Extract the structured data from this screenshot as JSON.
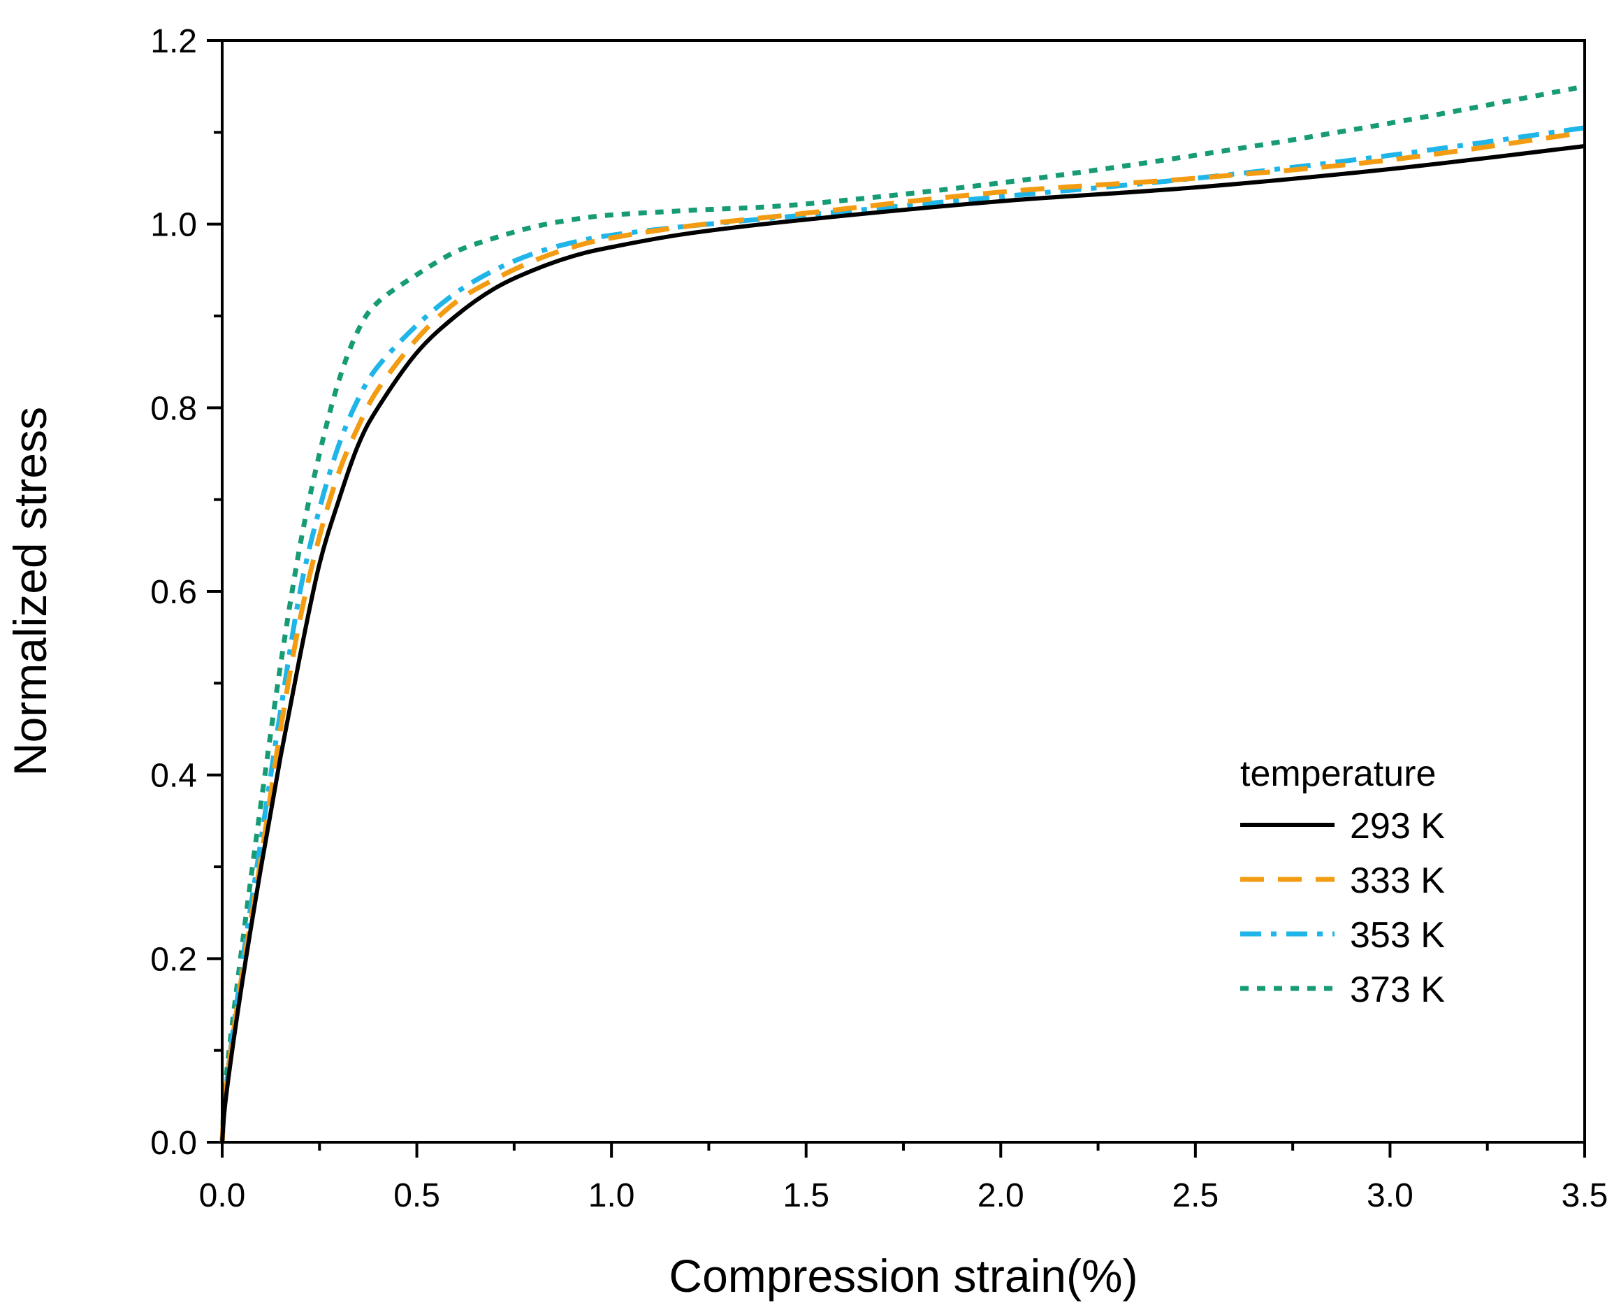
{
  "chart_data": {
    "type": "line",
    "title": "",
    "xlabel": "Compression strain(%)",
    "ylabel": "Normalized stress",
    "xlim": [
      0.0,
      3.5
    ],
    "ylim": [
      0.0,
      1.2
    ],
    "xticks": [
      "0.0",
      "0.5",
      "1.0",
      "1.5",
      "2.0",
      "2.5",
      "3.0",
      "3.5"
    ],
    "yticks": [
      "0.0",
      "0.2",
      "0.4",
      "0.6",
      "0.8",
      "1.0",
      "1.2"
    ],
    "grid": false,
    "legend": {
      "title": "temperature",
      "position": "bottom-right"
    },
    "series": [
      {
        "name": "293 K",
        "color": "#000000",
        "style": "solid",
        "x": [
          0,
          0.01,
          0.05,
          0.1,
          0.15,
          0.2,
          0.25,
          0.3,
          0.35,
          0.4,
          0.5,
          0.6,
          0.7,
          0.8,
          0.9,
          1.0,
          1.2,
          1.5,
          2.0,
          2.5,
          3.0,
          3.5
        ],
        "y": [
          0,
          0.05,
          0.17,
          0.3,
          0.42,
          0.53,
          0.63,
          0.7,
          0.76,
          0.8,
          0.86,
          0.9,
          0.93,
          0.95,
          0.965,
          0.975,
          0.99,
          1.005,
          1.025,
          1.04,
          1.06,
          1.085
        ]
      },
      {
        "name": "333 K",
        "color": "#f39c12",
        "style": "dashed",
        "x": [
          0,
          0.01,
          0.05,
          0.1,
          0.15,
          0.2,
          0.25,
          0.3,
          0.35,
          0.4,
          0.5,
          0.6,
          0.7,
          0.8,
          0.9,
          1.0,
          1.2,
          1.5,
          2.0,
          2.5,
          3.0,
          3.5
        ],
        "y": [
          0,
          0.06,
          0.18,
          0.31,
          0.45,
          0.57,
          0.66,
          0.73,
          0.78,
          0.82,
          0.875,
          0.915,
          0.94,
          0.96,
          0.975,
          0.985,
          0.998,
          1.012,
          1.035,
          1.05,
          1.07,
          1.1
        ]
      },
      {
        "name": "353 K",
        "color": "#1fb5e8",
        "style": "dashdot",
        "x": [
          0,
          0.01,
          0.05,
          0.1,
          0.15,
          0.2,
          0.25,
          0.3,
          0.35,
          0.4,
          0.5,
          0.6,
          0.7,
          0.8,
          0.9,
          1.0,
          1.2,
          1.5,
          2.0,
          2.5,
          3.0,
          3.5
        ],
        "y": [
          0,
          0.06,
          0.19,
          0.33,
          0.47,
          0.6,
          0.69,
          0.76,
          0.81,
          0.845,
          0.89,
          0.925,
          0.95,
          0.968,
          0.98,
          0.988,
          0.998,
          1.01,
          1.03,
          1.05,
          1.075,
          1.105
        ]
      },
      {
        "name": "373 K",
        "color": "#169b74",
        "style": "dotted",
        "x": [
          0,
          0.01,
          0.05,
          0.1,
          0.15,
          0.2,
          0.25,
          0.3,
          0.35,
          0.4,
          0.5,
          0.6,
          0.7,
          0.8,
          0.9,
          1.0,
          1.2,
          1.5,
          2.0,
          2.5,
          3.0,
          3.5
        ],
        "y": [
          0,
          0.07,
          0.21,
          0.37,
          0.52,
          0.65,
          0.75,
          0.83,
          0.885,
          0.915,
          0.945,
          0.97,
          0.985,
          0.997,
          1.005,
          1.01,
          1.015,
          1.022,
          1.045,
          1.075,
          1.11,
          1.15
        ]
      }
    ]
  }
}
